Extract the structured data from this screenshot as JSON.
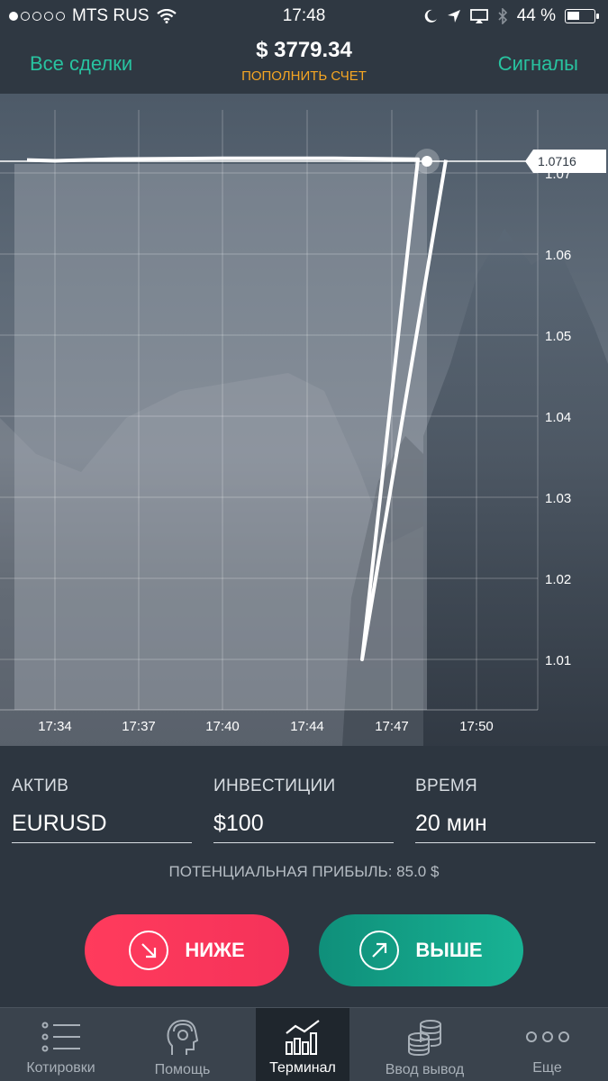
{
  "status_bar": {
    "carrier": "MTS RUS",
    "time": "17:48",
    "battery": "44 %",
    "battery_level": 0.44
  },
  "header": {
    "left_link": "Все сделки",
    "balance": "$ 3779.34",
    "deposit": "ПОПОЛНИТЬ СЧЕТ",
    "right_link": "Сигналы"
  },
  "chart_data": {
    "type": "line",
    "x_ticks": [
      "17:34",
      "17:37",
      "17:40",
      "17:44",
      "17:47",
      "17:50"
    ],
    "y_ticks": [
      "1.01",
      "1.02",
      "1.03",
      "1.04",
      "1.05",
      "1.06",
      "1.07"
    ],
    "ylim": [
      1.0,
      1.075
    ],
    "current_value": "1.0716",
    "series": [
      {
        "points": [
          {
            "x": "17:33",
            "y": 1.0716
          },
          {
            "x": "17:34",
            "y": 1.0715
          },
          {
            "x": "17:36",
            "y": 1.0717
          },
          {
            "x": "17:40",
            "y": 1.0718
          },
          {
            "x": "17:44",
            "y": 1.0718
          },
          {
            "x": "17:47",
            "y": 1.0717
          },
          {
            "x": "17:45",
            "y": 1.01
          },
          {
            "x": "17:48",
            "y": 1.0716
          }
        ]
      }
    ],
    "grid": true,
    "colors": {
      "line": "#ffffff",
      "highlight": "#ffffff"
    }
  },
  "form": {
    "asset_label": "АКТИВ",
    "asset_value": "EURUSD",
    "investment_label": "ИНВЕСТИЦИИ",
    "investment_value": "$100",
    "time_label": "ВРЕМЯ",
    "time_value": "20 мин",
    "profit": "ПОТЕНЦИАЛЬНАЯ ПРИБЫЛЬ: 85.0 $",
    "down_button": "НИЖЕ",
    "up_button": "ВЫШЕ"
  },
  "tabs": [
    {
      "label": "Котировки",
      "icon": "list-icon"
    },
    {
      "label": "Помощь",
      "icon": "support-icon"
    },
    {
      "label": "Терминал",
      "icon": "chart-bars-icon",
      "active": true
    },
    {
      "label": "Ввод вывод",
      "icon": "coins-icon"
    },
    {
      "label": "Еще",
      "icon": "more-icon"
    }
  ],
  "colors": {
    "accent": "#28c3a0",
    "deposit": "#f5a623",
    "down": "#ff3b5c",
    "up": "#18b394"
  }
}
